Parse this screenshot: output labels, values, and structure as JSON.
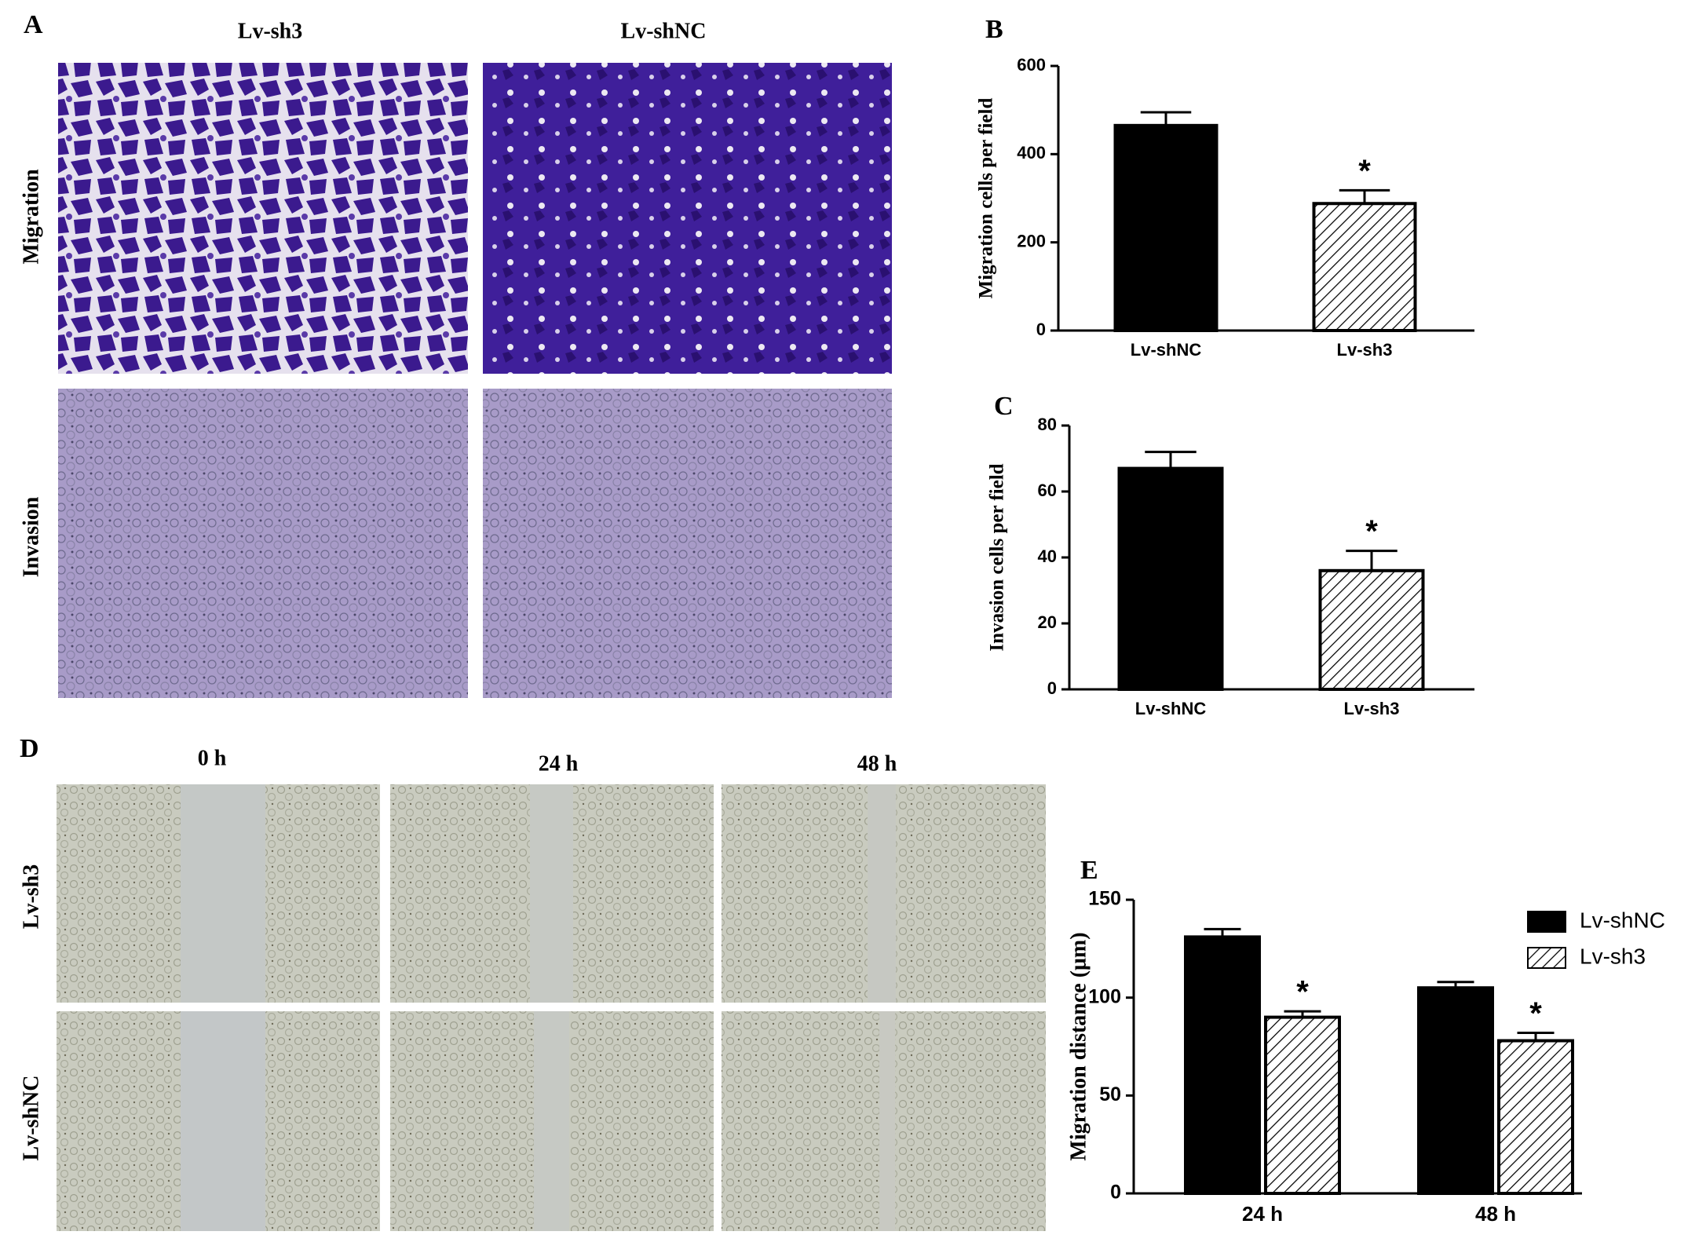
{
  "figure": {
    "panel_a": {
      "label": "A",
      "columns": [
        "Lv-sh3",
        "Lv-shNC"
      ],
      "rows": [
        "Migration",
        "Invasion"
      ]
    },
    "panel_d": {
      "label": "D",
      "columns": [
        "0 h",
        "24 h",
        "48 h"
      ],
      "rows": [
        "Lv-sh3",
        "Lv-shNC"
      ]
    }
  },
  "chart_data": [
    {
      "type": "bar",
      "panel": "B",
      "y_label": "Migration cells per field",
      "categories": [
        "Lv-shNC",
        "Lv-sh3"
      ],
      "values": [
        465,
        288
      ],
      "errors": [
        30,
        30
      ],
      "colors": [
        "#000000",
        "#ffffff"
      ],
      "hatched": [
        false,
        true
      ],
      "value_annotations": [
        null,
        "*"
      ],
      "ylim": [
        0,
        600
      ],
      "yticks": [
        0,
        200,
        400,
        600
      ]
    },
    {
      "type": "bar",
      "panel": "C",
      "y_label": "Invasion cells per field",
      "categories": [
        "Lv-shNC",
        "Lv-sh3"
      ],
      "values": [
        67,
        36
      ],
      "errors": [
        5,
        6
      ],
      "colors": [
        "#000000",
        "#ffffff"
      ],
      "hatched": [
        false,
        true
      ],
      "value_annotations": [
        null,
        "*"
      ],
      "ylim": [
        0,
        80
      ],
      "yticks": [
        0,
        20,
        40,
        60,
        80
      ]
    },
    {
      "type": "grouped_bar",
      "panel": "E",
      "y_label": "Migration distance (μm)",
      "categories": [
        "24 h",
        "48 h"
      ],
      "series": [
        {
          "name": "Lv-shNC",
          "color": "#000000",
          "hatched": false,
          "values": [
            131,
            105
          ],
          "errors": [
            4,
            3
          ],
          "value_annotations": [
            null,
            null
          ]
        },
        {
          "name": "Lv-sh3",
          "color": "#ffffff",
          "hatched": true,
          "values": [
            90,
            78
          ],
          "errors": [
            3,
            4
          ],
          "value_annotations": [
            "*",
            "*"
          ]
        }
      ],
      "ylim": [
        0,
        150
      ],
      "yticks": [
        0,
        50,
        100,
        150
      ],
      "legend": "top-right"
    }
  ]
}
